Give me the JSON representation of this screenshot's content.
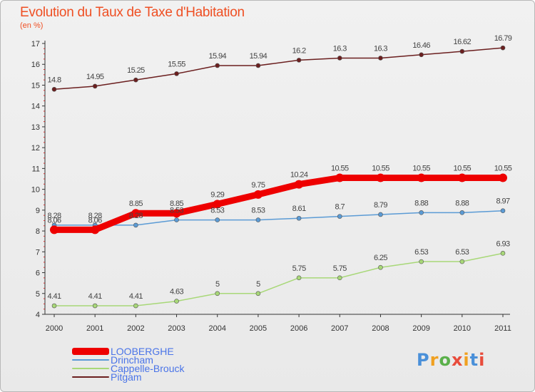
{
  "header": {
    "title": "Evolution du Taux de Taxe d'Habitation",
    "unit": "(en %)"
  },
  "logo": {
    "text": "Proxiti",
    "colors": [
      "#4a90d9",
      "#f0a020",
      "#5ab04a",
      "#e84c3c",
      "#f0a020",
      "#4a90d9",
      "#e84c3c"
    ]
  },
  "chart_data": {
    "type": "line",
    "title": "Evolution du Taux de Taxe d'Habitation",
    "ylabel": "(en %)",
    "xlabel": "",
    "x": [
      "2000",
      "2001",
      "2002",
      "2003",
      "2004",
      "2005",
      "2006",
      "2007",
      "2008",
      "2009",
      "2010",
      "2011"
    ],
    "ylim": [
      4,
      17
    ],
    "yticks": [
      "4",
      "5",
      "6",
      "7",
      "8",
      "9",
      "10",
      "11",
      "12",
      "13",
      "14",
      "15",
      "16",
      "17"
    ],
    "grid": false,
    "legend_position": "bottom-left",
    "series": [
      {
        "name": "LOOBERGHE",
        "color": "#ee0000",
        "values": [
          8.06,
          8.06,
          8.85,
          8.85,
          9.29,
          9.75,
          10.24,
          10.55,
          10.55,
          10.55,
          10.55,
          10.55
        ],
        "labels": [
          "8.06",
          "8.06",
          "8.85",
          "8.85",
          "9.29",
          "9.75",
          "10.24",
          "10.55",
          "10.55",
          "10.55",
          "10.55",
          "10.55"
        ]
      },
      {
        "name": "Drincham",
        "color": "#5b9bd5",
        "values": [
          8.28,
          8.28,
          8.28,
          8.53,
          8.53,
          8.53,
          8.61,
          8.7,
          8.79,
          8.88,
          8.88,
          8.97
        ],
        "labels": [
          "8.28",
          "8.28",
          "8.28",
          "8.53",
          "8.53",
          "8.53",
          "8.61",
          "8.7",
          "8.79",
          "8.88",
          "8.88",
          "8.97"
        ]
      },
      {
        "name": "Cappelle-Brouck",
        "color": "#a8d878",
        "values": [
          4.41,
          4.41,
          4.41,
          4.63,
          5,
          5,
          5.75,
          5.75,
          6.25,
          6.53,
          6.53,
          6.93
        ],
        "labels": [
          "4.41",
          "4.41",
          "4.41",
          "4.63",
          "5",
          "5",
          "5.75",
          "5.75",
          "6.25",
          "6.53",
          "6.53",
          "6.93"
        ]
      },
      {
        "name": "Pitgam",
        "color": "#6b1f1f",
        "values": [
          14.8,
          14.95,
          15.25,
          15.55,
          15.94,
          15.94,
          16.2,
          16.3,
          16.3,
          16.46,
          16.62,
          16.79
        ],
        "labels": [
          "14.8",
          "14.95",
          "15.25",
          "15.55",
          "15.94",
          "15.94",
          "16.2",
          "16.3",
          "16.3",
          "16.46",
          "16.62",
          "16.79"
        ]
      }
    ]
  }
}
